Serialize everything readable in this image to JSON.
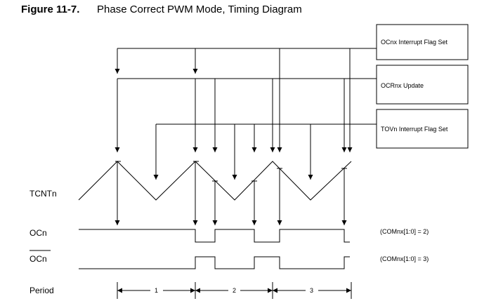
{
  "figure": {
    "number": "Figure 11-7.",
    "title": "Phase Correct PWM Mode, Timing Diagram"
  },
  "events": {
    "ocf_label": "OCnx Interrupt Flag Set",
    "ocr_label": "OCRnx Update",
    "tov_label": "TOVn Interrupt Flag Set"
  },
  "signals": {
    "tcnt": "TCNTn",
    "oc": "OCn",
    "oc_inverted": "OCn",
    "period": "Period"
  },
  "modes": {
    "non_inverted": "(COMnx[1:0] = 2)",
    "inverted": "(COMnx[1:0] = 3)"
  },
  "periods": [
    "1",
    "2",
    "3"
  ]
}
